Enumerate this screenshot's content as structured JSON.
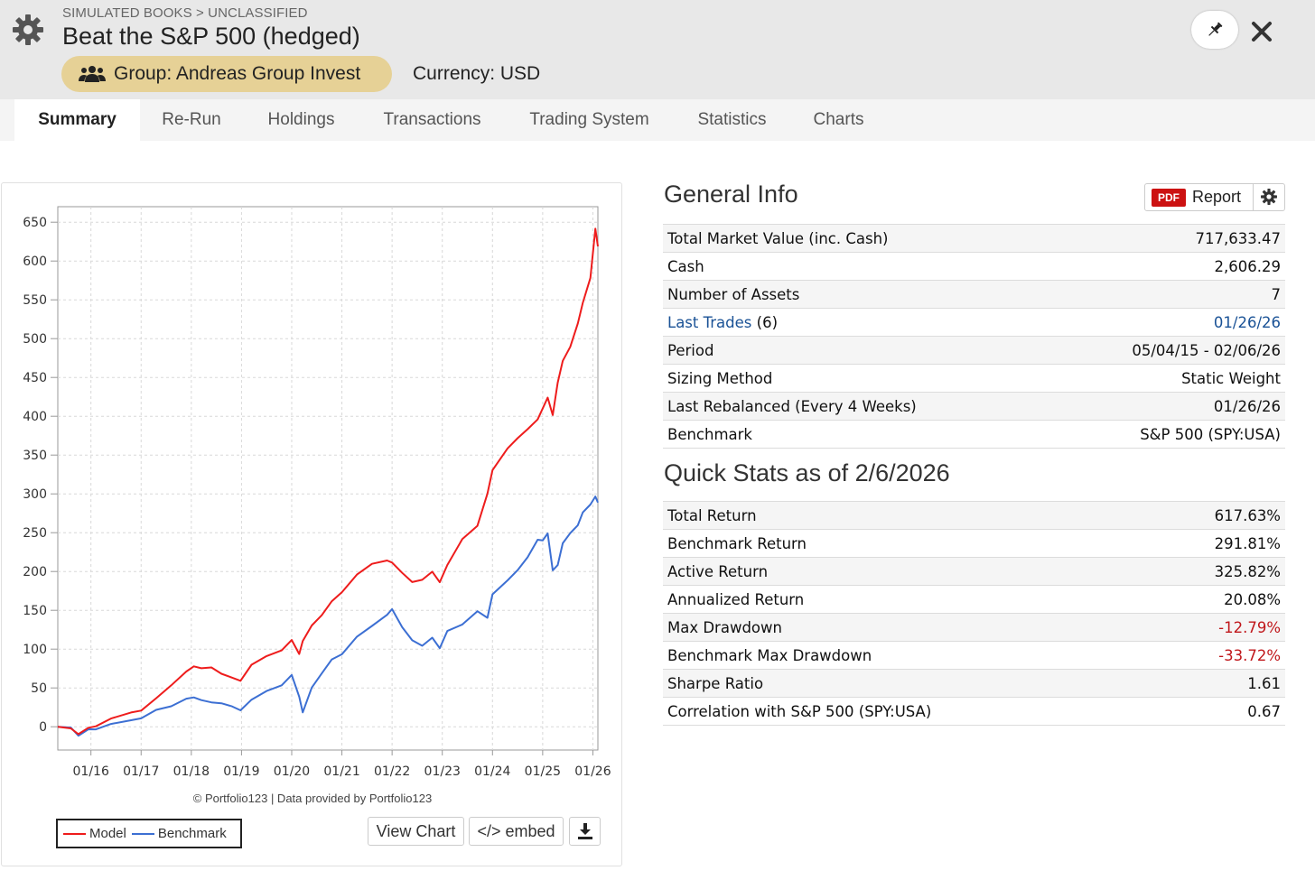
{
  "header": {
    "breadcrumb": "SIMULATED BOOKS > UNCLASSIFIED",
    "title": "Beat the S&P 500 (hedged)",
    "group_label": "Group: Andreas Group Invest",
    "currency_label": "Currency: USD",
    "icons": {
      "settings": "gear-icon",
      "group": "users-icon",
      "pin": "pin-icon",
      "close": "close-icon"
    }
  },
  "tabs": [
    {
      "label": "Summary",
      "active": true
    },
    {
      "label": "Re-Run"
    },
    {
      "label": "Holdings"
    },
    {
      "label": "Transactions"
    },
    {
      "label": "Trading System"
    },
    {
      "label": "Statistics"
    },
    {
      "label": "Charts"
    }
  ],
  "chart_panel": {
    "copyright": "© Portfolio123 | Data provided by Portfolio123",
    "view_chart_label": "View Chart",
    "embed_label": "</> embed",
    "download_icon": "download-icon"
  },
  "chart_data": {
    "type": "line",
    "title": "",
    "xlabel": "",
    "ylabel": "",
    "ylim": [
      -30,
      670
    ],
    "y_ticks": [
      0,
      50,
      100,
      150,
      200,
      250,
      300,
      350,
      400,
      450,
      500,
      550,
      600,
      650
    ],
    "x_tick_labels": [
      "01/16",
      "01/17",
      "01/18",
      "01/19",
      "01/20",
      "01/21",
      "01/22",
      "01/23",
      "01/24",
      "01/25",
      "01/26"
    ],
    "x_tick_years": [
      2016,
      2017,
      2018,
      2019,
      2020,
      2021,
      2022,
      2023,
      2024,
      2025,
      2026
    ],
    "x_range": [
      2015.34,
      2026.1
    ],
    "grid": true,
    "legend_position": "bottom-left",
    "series": [
      {
        "name": "Model",
        "color": "#ee1c1c",
        "x": [
          2015.34,
          2015.6,
          2015.75,
          2015.95,
          2016.1,
          2016.4,
          2016.8,
          2017.0,
          2017.3,
          2017.6,
          2017.9,
          2018.05,
          2018.2,
          2018.4,
          2018.6,
          2018.8,
          2018.98,
          2019.2,
          2019.5,
          2019.8,
          2020.0,
          2020.15,
          2020.22,
          2020.4,
          2020.6,
          2020.8,
          2021.0,
          2021.3,
          2021.6,
          2021.9,
          2022.0,
          2022.2,
          2022.4,
          2022.6,
          2022.8,
          2022.95,
          2023.1,
          2023.4,
          2023.7,
          2023.9,
          2024.0,
          2024.3,
          2024.5,
          2024.7,
          2024.9,
          2025.0,
          2025.1,
          2025.2,
          2025.3,
          2025.4,
          2025.55,
          2025.7,
          2025.8,
          2025.95,
          2026.05,
          2026.1
        ],
        "values": [
          0,
          -3,
          -8,
          -3,
          2,
          10,
          18,
          22,
          35,
          55,
          70,
          78,
          76,
          75,
          70,
          62,
          60,
          80,
          90,
          100,
          110,
          95,
          110,
          130,
          145,
          160,
          175,
          195,
          210,
          215,
          210,
          200,
          185,
          190,
          200,
          185,
          210,
          240,
          260,
          300,
          330,
          360,
          370,
          385,
          395,
          410,
          425,
          400,
          445,
          470,
          490,
          520,
          545,
          580,
          640,
          620
        ]
      },
      {
        "name": "Benchmark",
        "color": "#3c6fd3",
        "x": [
          2015.34,
          2015.6,
          2015.75,
          2015.95,
          2016.1,
          2016.4,
          2016.8,
          2017.0,
          2017.3,
          2017.6,
          2017.9,
          2018.05,
          2018.2,
          2018.4,
          2018.6,
          2018.8,
          2018.98,
          2019.2,
          2019.5,
          2019.8,
          2020.0,
          2020.15,
          2020.22,
          2020.4,
          2020.6,
          2020.8,
          2021.0,
          2021.3,
          2021.6,
          2021.9,
          2022.0,
          2022.2,
          2022.4,
          2022.6,
          2022.8,
          2022.95,
          2023.1,
          2023.4,
          2023.7,
          2023.9,
          2024.0,
          2024.3,
          2024.5,
          2024.7,
          2024.9,
          2025.0,
          2025.1,
          2025.2,
          2025.3,
          2025.4,
          2025.55,
          2025.7,
          2025.8,
          2025.95,
          2026.05,
          2026.1
        ],
        "values": [
          0,
          -2,
          -10,
          -5,
          -2,
          3,
          8,
          12,
          20,
          28,
          35,
          38,
          35,
          30,
          32,
          25,
          22,
          35,
          45,
          55,
          65,
          40,
          18,
          50,
          70,
          85,
          95,
          115,
          130,
          145,
          150,
          130,
          110,
          105,
          115,
          100,
          125,
          130,
          150,
          140,
          170,
          190,
          200,
          220,
          240,
          240,
          250,
          200,
          210,
          235,
          250,
          260,
          275,
          288,
          295,
          290
        ]
      }
    ]
  },
  "general_info": {
    "title": "General Info",
    "report_badge": "PDF",
    "report_label": "Report",
    "rows": [
      {
        "label": "Total Market Value (inc. Cash)",
        "value": "717,633.47"
      },
      {
        "label": "Cash",
        "value": "2,606.29"
      },
      {
        "label": "Number of Assets",
        "value": "7"
      },
      {
        "label": "Last Trades",
        "label_suffix": " (6)",
        "value": "01/26/26",
        "link": true
      },
      {
        "label": "Period",
        "value": "05/04/15 - 02/06/26"
      },
      {
        "label": "Sizing Method",
        "value": "Static Weight"
      },
      {
        "label": "Last Rebalanced (Every 4 Weeks)",
        "value": "01/26/26"
      },
      {
        "label": "Benchmark",
        "value": "S&P 500 (SPY:USA)"
      }
    ]
  },
  "quick_stats": {
    "title": "Quick Stats as of 2/6/2026",
    "negative_color": "#c0171b",
    "rows": [
      {
        "label": "Total Return",
        "value": "617.63%"
      },
      {
        "label": "Benchmark Return",
        "value": "291.81%"
      },
      {
        "label": "Active Return",
        "value": "325.82%"
      },
      {
        "label": "Annualized Return",
        "value": "20.08%"
      },
      {
        "label": "Max Drawdown",
        "value": "-12.79%",
        "negative": true
      },
      {
        "label": "Benchmark Max Drawdown",
        "value": "-33.72%",
        "negative": true
      },
      {
        "label": "Sharpe Ratio",
        "value": "1.61"
      },
      {
        "label": "Correlation with S&P 500 (SPY:USA)",
        "value": "0.67"
      }
    ]
  }
}
